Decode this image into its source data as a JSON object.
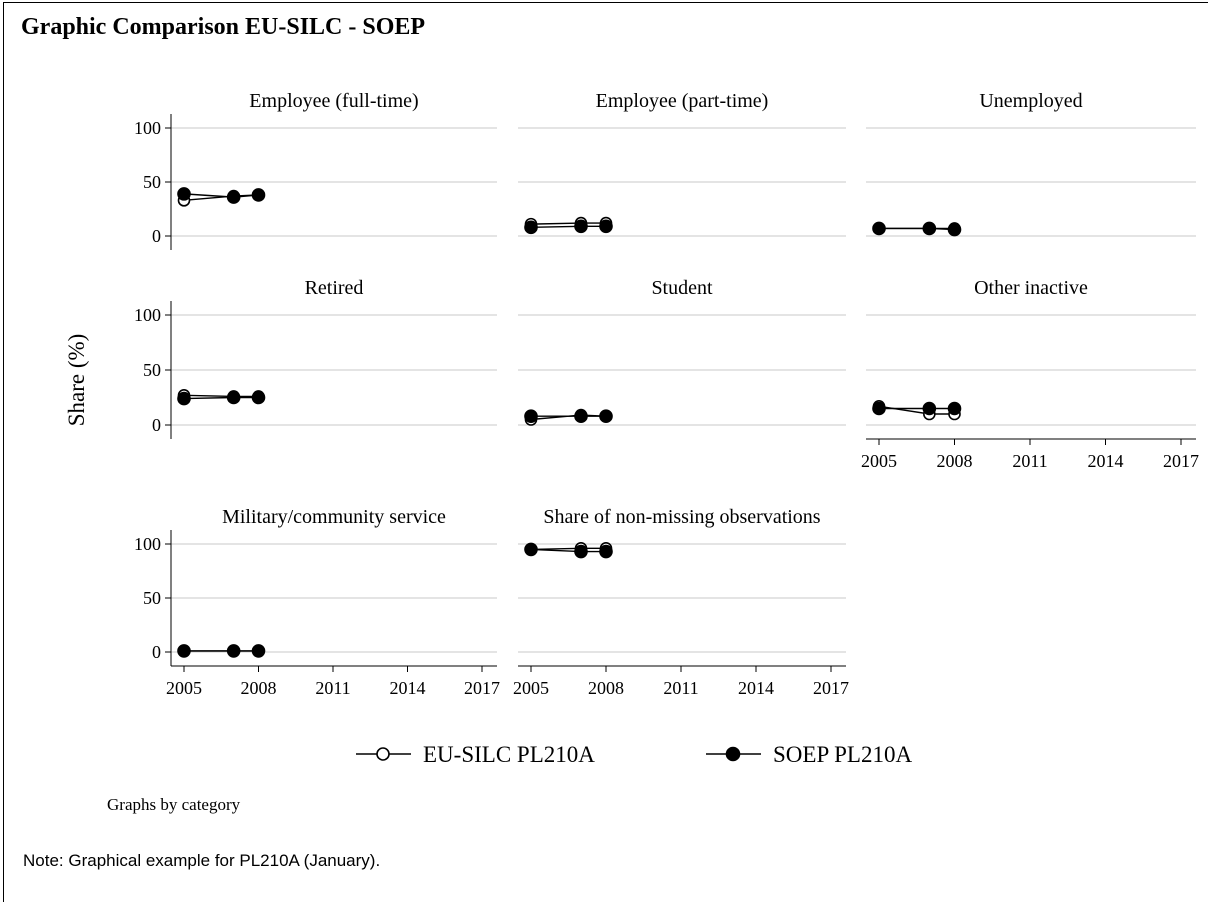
{
  "document": {
    "title": "Graphic Comparison EU-SILC - SOEP",
    "graphs_note": "Graphs by category",
    "footnote": "Note: Graphical example for PL210A (January)."
  },
  "chart_data": {
    "type": "line",
    "layout": "small-multiples",
    "ylabel": "Share (%)",
    "xlabel": "",
    "xticks": [
      2005,
      2008,
      2011,
      2014,
      2017
    ],
    "yticks": [
      0,
      50,
      100
    ],
    "xlim": [
      2005,
      2017
    ],
    "ylim": [
      0,
      100
    ],
    "grid": "horizontal",
    "legend_position": "bottom",
    "series": [
      {
        "name": "EU-SILC PL210A",
        "marker": "hollow-circle",
        "color": "#000000"
      },
      {
        "name": "SOEP PL210A",
        "marker": "filled-circle",
        "color": "#000000"
      }
    ],
    "x": [
      2005,
      2007,
      2008
    ],
    "panels": [
      {
        "title": "Employee (full-time)",
        "values": {
          "EU-SILC PL210A": [
            33,
            37,
            38
          ],
          "SOEP PL210A": [
            39,
            36,
            38
          ]
        }
      },
      {
        "title": "Employee (part-time)",
        "values": {
          "EU-SILC PL210A": [
            11,
            12,
            12
          ],
          "SOEP PL210A": [
            8,
            9,
            9
          ]
        }
      },
      {
        "title": "Unemployed",
        "values": {
          "EU-SILC PL210A": [
            7,
            7,
            7
          ],
          "SOEP PL210A": [
            7,
            7,
            6
          ]
        }
      },
      {
        "title": "Retired",
        "values": {
          "EU-SILC PL210A": [
            27,
            26,
            26
          ],
          "SOEP PL210A": [
            24,
            25,
            25
          ]
        }
      },
      {
        "title": "Student",
        "values": {
          "EU-SILC PL210A": [
            5,
            9,
            8
          ],
          "SOEP PL210A": [
            8,
            8,
            8
          ]
        }
      },
      {
        "title": "Other inactive",
        "values": {
          "EU-SILC PL210A": [
            17,
            10,
            10
          ],
          "SOEP PL210A": [
            15,
            15,
            15
          ]
        }
      },
      {
        "title": "Military/community service",
        "values": {
          "EU-SILC PL210A": [
            1,
            1,
            1
          ],
          "SOEP PL210A": [
            1,
            1,
            1
          ]
        }
      },
      {
        "title": "Share of non-missing observations",
        "values": {
          "EU-SILC PL210A": [
            95,
            96,
            96
          ],
          "SOEP PL210A": [
            95,
            93,
            93
          ]
        }
      }
    ]
  }
}
